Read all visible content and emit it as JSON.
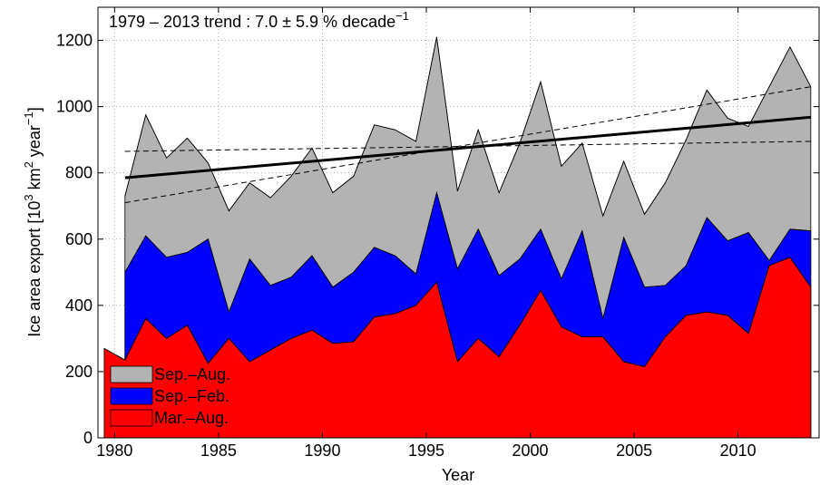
{
  "chart_data": {
    "type": "area",
    "annotation": {
      "text": "1979 – 2013 trend : 7.0 ± 5.9 % decade",
      "superscript": "−1"
    },
    "xlabel": "Year",
    "ylabel": [
      {
        "text": "Ice area export [10"
      },
      {
        "sup": "3"
      },
      {
        "text": " km"
      },
      {
        "sup": "2"
      },
      {
        "text": " year"
      },
      {
        "sup": "−1"
      },
      {
        "text": "]"
      }
    ],
    "x": [
      1979.5,
      1980.5,
      1981.5,
      1982.5,
      1983.5,
      1984.5,
      1985.5,
      1986.5,
      1987.5,
      1988.5,
      1989.5,
      1990.5,
      1991.5,
      1992.5,
      1993.5,
      1994.5,
      1995.5,
      1996.5,
      1997.5,
      1998.5,
      1999.5,
      2000.5,
      2001.5,
      2002.5,
      2003.5,
      2004.5,
      2005.5,
      2006.5,
      2007.5,
      2008.5,
      2009.5,
      2010.5,
      2011.5,
      2012.5,
      2013.5
    ],
    "series": [
      {
        "name": "Sep.–Aug.",
        "color": "#b3b3b3",
        "values": [
          null,
          730,
          975,
          845,
          905,
          830,
          685,
          770,
          725,
          790,
          875,
          740,
          790,
          945,
          930,
          895,
          1210,
          745,
          930,
          740,
          890,
          1075,
          820,
          890,
          670,
          835,
          675,
          770,
          900,
          1050,
          965,
          940,
          1060,
          1180,
          1060
        ]
      },
      {
        "name": "Sep.–Feb.",
        "color": "#0000ff",
        "values": [
          null,
          500,
          610,
          545,
          560,
          600,
          380,
          540,
          460,
          485,
          550,
          455,
          500,
          575,
          550,
          495,
          740,
          510,
          630,
          490,
          540,
          630,
          480,
          625,
          360,
          605,
          455,
          460,
          520,
          665,
          595,
          620,
          535,
          630,
          625
        ]
      },
      {
        "name": "Mar.–Aug.",
        "color": "#ff0000",
        "values": [
          270,
          235,
          360,
          300,
          340,
          225,
          300,
          230,
          265,
          300,
          325,
          285,
          290,
          365,
          375,
          400,
          470,
          230,
          300,
          245,
          340,
          445,
          335,
          305,
          305,
          230,
          215,
          305,
          370,
          380,
          370,
          315,
          520,
          545,
          455
        ]
      }
    ],
    "trend_lines": [
      {
        "x": [
          1980.5,
          2013.5
        ],
        "values": [
          785,
          968
        ],
        "style": "solid"
      },
      {
        "x": [
          1980.5,
          2013.5
        ],
        "values": [
          710,
          1060
        ],
        "style": "dashed"
      },
      {
        "x": [
          1980.5,
          2013.5
        ],
        "values": [
          865,
          895
        ],
        "style": "dashed"
      }
    ],
    "xlim": [
      1979.2,
      2013.9
    ],
    "ylim": [
      0,
      1300
    ],
    "xticks": [
      1980,
      1985,
      1990,
      1995,
      2000,
      2005,
      2010
    ],
    "yticks": [
      0,
      200,
      400,
      600,
      800,
      1000,
      1200
    ],
    "grid": true,
    "legend": "lower left"
  }
}
